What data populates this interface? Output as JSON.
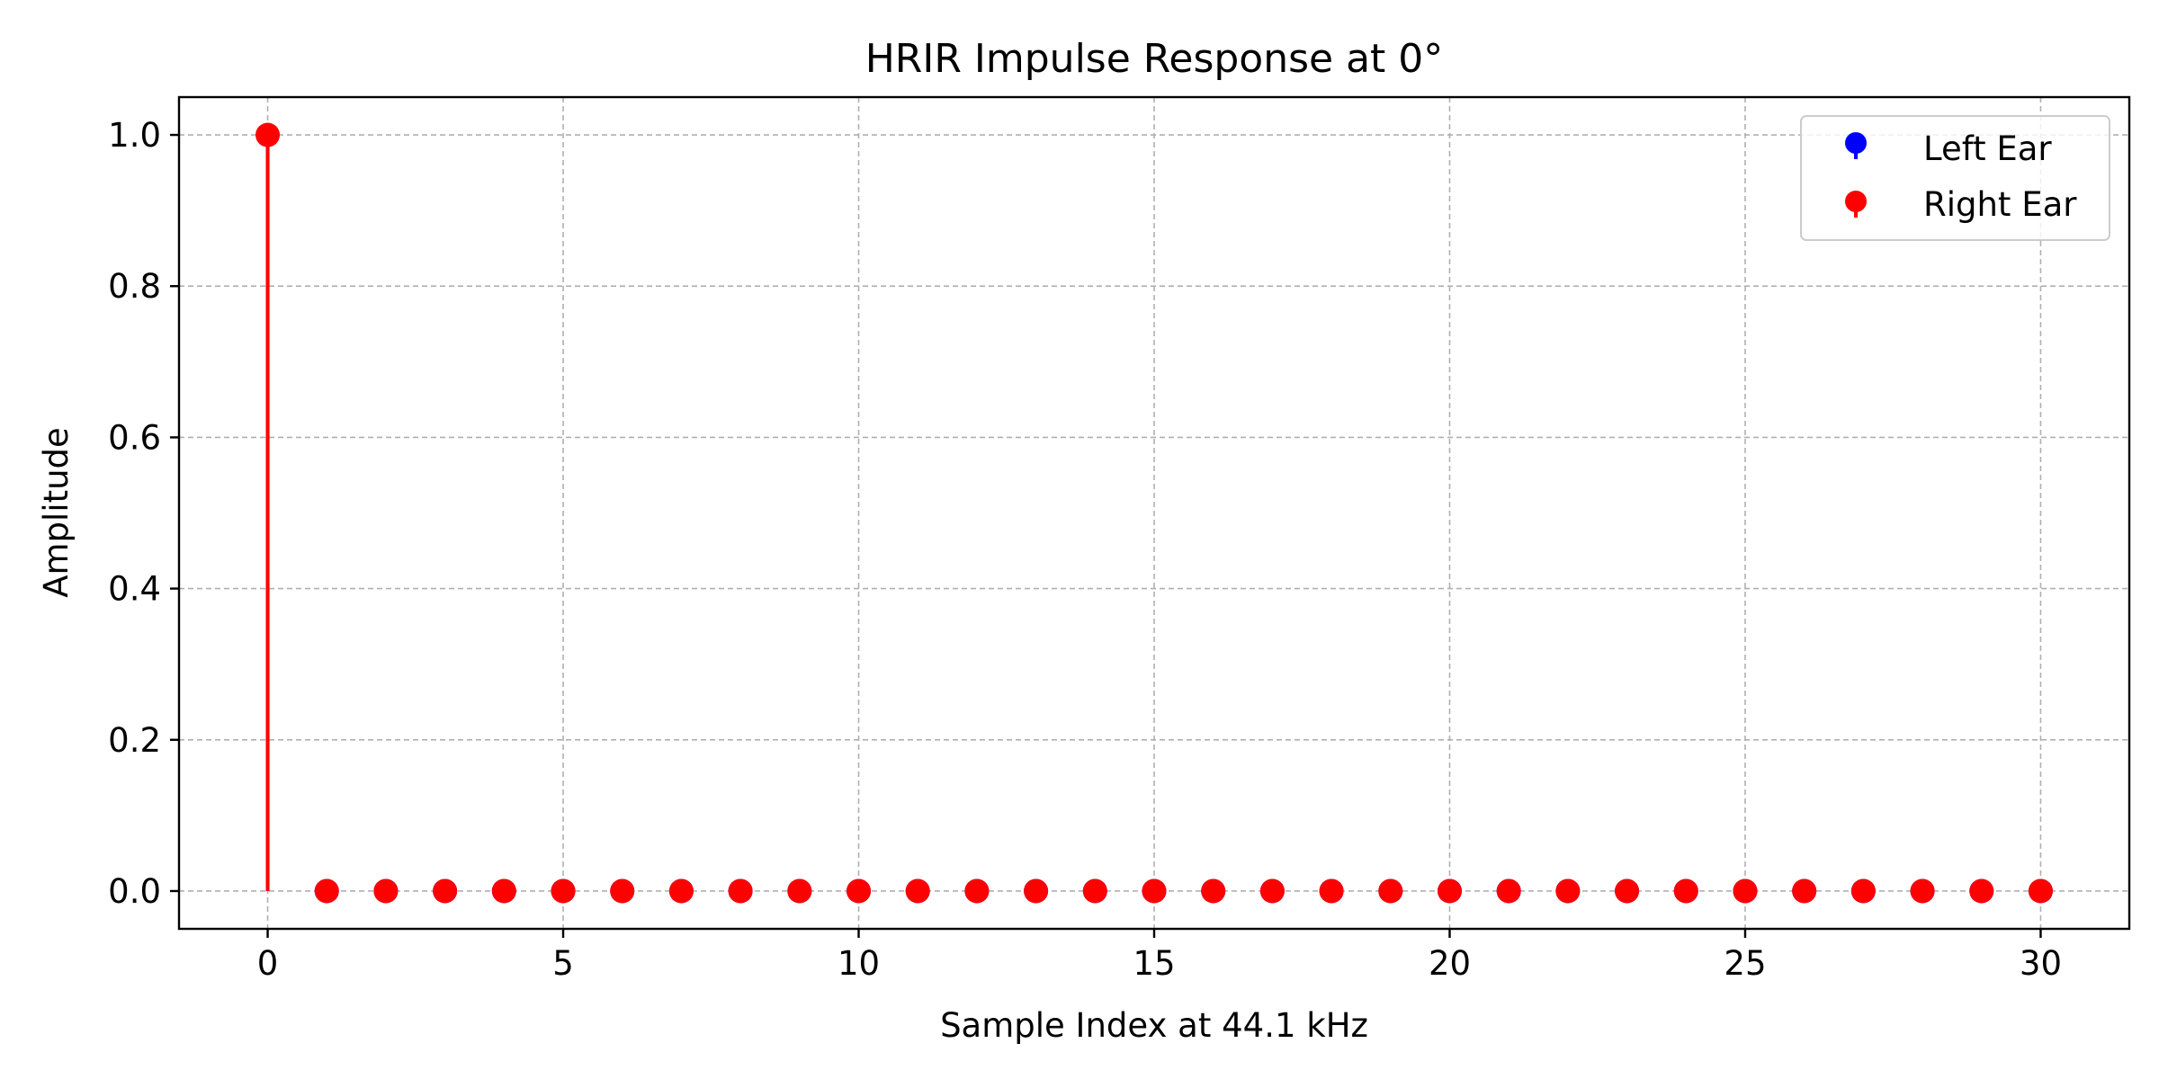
{
  "chart_data": {
    "type": "stem",
    "title": "HRIR Impulse Response at 0°",
    "xlabel": "Sample Index at 44.1 kHz",
    "ylabel": "Amplitude",
    "xlim": [
      -1.5,
      31.5
    ],
    "ylim": [
      -0.05,
      1.05
    ],
    "xticks": [
      0,
      5,
      10,
      15,
      20,
      25,
      30
    ],
    "xtick_labels": [
      "0",
      "5",
      "10",
      "15",
      "20",
      "25",
      "30"
    ],
    "yticks": [
      0.0,
      0.2,
      0.4,
      0.6,
      0.8,
      1.0
    ],
    "ytick_labels": [
      "0.0",
      "0.2",
      "0.4",
      "0.6",
      "0.8",
      "1.0"
    ],
    "grid": true,
    "legend_position": "top-right",
    "x": [
      0,
      1,
      2,
      3,
      4,
      5,
      6,
      7,
      8,
      9,
      10,
      11,
      12,
      13,
      14,
      15,
      16,
      17,
      18,
      19,
      20,
      21,
      22,
      23,
      24,
      25,
      26,
      27,
      28,
      29,
      30
    ],
    "series": [
      {
        "name": "Left Ear",
        "color": "#0000ff",
        "values": [
          1,
          0,
          0,
          0,
          0,
          0,
          0,
          0,
          0,
          0,
          0,
          0,
          0,
          0,
          0,
          0,
          0,
          0,
          0,
          0,
          0,
          0,
          0,
          0,
          0,
          0,
          0,
          0,
          0,
          0,
          0
        ]
      },
      {
        "name": "Right Ear",
        "color": "#ff0000",
        "values": [
          1,
          0,
          0,
          0,
          0,
          0,
          0,
          0,
          0,
          0,
          0,
          0,
          0,
          0,
          0,
          0,
          0,
          0,
          0,
          0,
          0,
          0,
          0,
          0,
          0,
          0,
          0,
          0,
          0,
          0,
          0
        ]
      }
    ]
  }
}
